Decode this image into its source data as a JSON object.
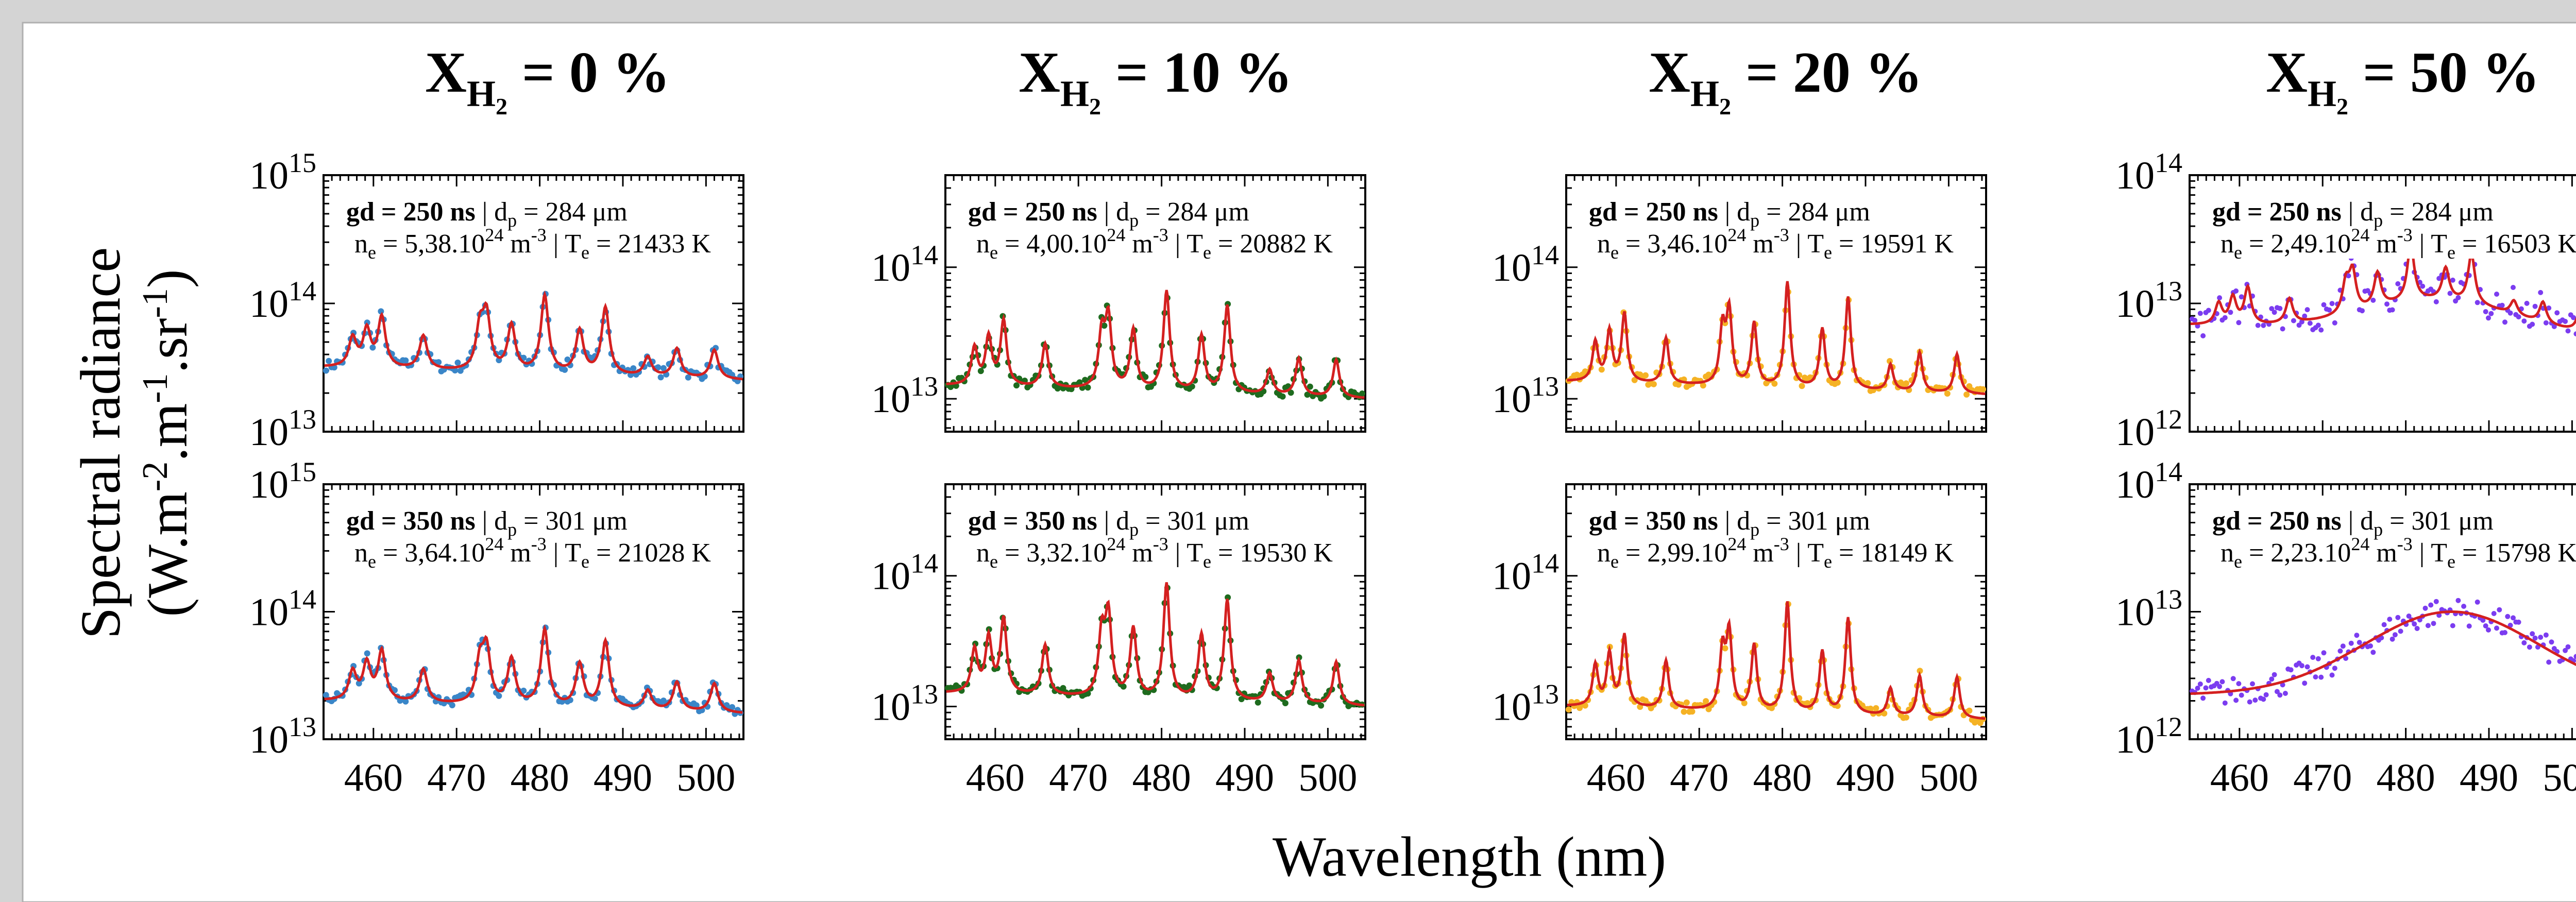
{
  "figure": {
    "ylabel_line1": "Spectral radiance",
    "ylabel_line2_parts": [
      "(W.m",
      "-2",
      ".m",
      "-1",
      ".sr",
      "-1",
      ")"
    ],
    "xlabel": "Wavelength (nm)"
  },
  "colors": {
    "background": "#d4d4d4",
    "panel": "#ffffff",
    "fit": "#d42020",
    "XH2_0": "#3a86c8",
    "XH2_10": "#1e6b1e",
    "XH2_20": "#f5b224",
    "XH2_50": "#7b3cf0"
  },
  "chart_data": [
    {
      "type": "line",
      "column_title": {
        "var": "X",
        "sub": "H",
        "subsub": "2",
        "text": " = 0 %"
      },
      "panels": [
        {
          "gd": "gd = 250 ns",
          "dp_pre": "d",
          "dp_sub": "p",
          "dp_val": " = 284 μm",
          "ne_pre": "n",
          "ne_sub": "e",
          "ne_val": " = 5,38.10",
          "ne_exp": "24",
          "ne_unit": " m",
          "ne_unit_exp": "-3",
          "te_pre": "T",
          "te_sub": "e",
          "te_val": " = 21433 K",
          "yticks": [
            13,
            14,
            15
          ],
          "ylim_log10": [
            13,
            15
          ],
          "series": [
            {
              "name": "measured",
              "color": "#3a86c8"
            },
            {
              "name": "fit",
              "color": "#d42020"
            }
          ]
        },
        {
          "gd": "gd = 350 ns",
          "dp_pre": "d",
          "dp_sub": "p",
          "dp_val": " = 301 μm",
          "ne_pre": "n",
          "ne_sub": "e",
          "ne_val": " = 3,64.10",
          "ne_exp": "24",
          "ne_unit": " m",
          "ne_unit_exp": "-3",
          "te_pre": "T",
          "te_sub": "e",
          "te_val": " = 21028 K",
          "yticks": [
            13,
            14,
            15
          ],
          "ylim_log10": [
            13,
            15
          ],
          "series": [
            {
              "name": "measured",
              "color": "#3a86c8"
            },
            {
              "name": "fit",
              "color": "#d42020"
            }
          ]
        }
      ]
    },
    {
      "type": "line",
      "column_title": {
        "var": "X",
        "sub": "H",
        "subsub": "2",
        "text": " = 10 %"
      },
      "panels": [
        {
          "gd": "gd = 250 ns",
          "dp_pre": "d",
          "dp_sub": "p",
          "dp_val": " = 284 μm",
          "ne_pre": "n",
          "ne_sub": "e",
          "ne_val": " = 4,00.10",
          "ne_exp": "24",
          "ne_unit": " m",
          "ne_unit_exp": "-3",
          "te_pre": "T",
          "te_sub": "e",
          "te_val": " = 20882 K",
          "yticks": [
            13,
            14
          ],
          "ylim_log10": [
            12.75,
            14.7
          ],
          "series": [
            {
              "name": "measured",
              "color": "#1e6b1e"
            },
            {
              "name": "fit",
              "color": "#d42020"
            }
          ]
        },
        {
          "gd": "gd = 350 ns",
          "dp_pre": "d",
          "dp_sub": "p",
          "dp_val": " = 301 μm",
          "ne_pre": "n",
          "ne_sub": "e",
          "ne_val": " = 3,32.10",
          "ne_exp": "24",
          "ne_unit": " m",
          "ne_unit_exp": "-3",
          "te_pre": "T",
          "te_sub": "e",
          "te_val": " = 19530 K",
          "yticks": [
            13,
            14
          ],
          "ylim_log10": [
            12.75,
            14.7
          ],
          "series": [
            {
              "name": "measured",
              "color": "#1e6b1e"
            },
            {
              "name": "fit",
              "color": "#d42020"
            }
          ]
        }
      ]
    },
    {
      "type": "line",
      "column_title": {
        "var": "X",
        "sub": "H",
        "subsub": "2",
        "text": " = 20 %"
      },
      "panels": [
        {
          "gd": "gd = 250 ns",
          "dp_pre": "d",
          "dp_sub": "p",
          "dp_val": " = 284 μm",
          "ne_pre": "n",
          "ne_sub": "e",
          "ne_val": " = 3,46.10",
          "ne_exp": "24",
          "ne_unit": " m",
          "ne_unit_exp": "-3",
          "te_pre": "T",
          "te_sub": "e",
          "te_val": " = 19591 K",
          "yticks": [
            13,
            14
          ],
          "ylim_log10": [
            12.75,
            14.7
          ],
          "series": [
            {
              "name": "measured",
              "color": "#f5b224"
            },
            {
              "name": "fit",
              "color": "#d42020"
            }
          ]
        },
        {
          "gd": "gd = 350 ns",
          "dp_pre": "d",
          "dp_sub": "p",
          "dp_val": " = 301 μm",
          "ne_pre": "n",
          "ne_sub": "e",
          "ne_val": " = 2,99.10",
          "ne_exp": "24",
          "ne_unit": " m",
          "ne_unit_exp": "-3",
          "te_pre": "T",
          "te_sub": "e",
          "te_val": " = 18149 K",
          "yticks": [
            13,
            14
          ],
          "ylim_log10": [
            12.75,
            14.7
          ],
          "series": [
            {
              "name": "measured",
              "color": "#f5b224"
            },
            {
              "name": "fit",
              "color": "#d42020"
            }
          ]
        }
      ]
    },
    {
      "type": "line",
      "column_title": {
        "var": "X",
        "sub": "H",
        "subsub": "2",
        "text": " = 50 %"
      },
      "panels": [
        {
          "gd": "gd = 250 ns",
          "dp_pre": "d",
          "dp_sub": "p",
          "dp_val": " = 284 μm",
          "ne_pre": "n",
          "ne_sub": "e",
          "ne_val": " = 2,49.10",
          "ne_exp": "24",
          "ne_unit": " m",
          "ne_unit_exp": "-3",
          "te_pre": "T",
          "te_sub": "e",
          "te_val": " = 16503 K",
          "yticks": [
            12,
            13,
            14
          ],
          "ylim_log10": [
            12,
            14
          ],
          "series": [
            {
              "name": "measured",
              "color": "#7b3cf0"
            },
            {
              "name": "fit",
              "color": "#d42020"
            }
          ]
        },
        {
          "gd": "gd = 250 ns",
          "dp_pre": "d",
          "dp_sub": "p",
          "dp_val": " = 301 μm",
          "ne_pre": "n",
          "ne_sub": "e",
          "ne_val": " = 2,23.10",
          "ne_exp": "24",
          "ne_unit": " m",
          "ne_unit_exp": "-3",
          "te_pre": "T",
          "te_sub": "e",
          "te_val": " = 15798 K",
          "yticks": [
            12,
            13,
            14
          ],
          "ylim_log10": [
            12,
            14
          ],
          "series": [
            {
              "name": "measured",
              "color": "#7b3cf0"
            },
            {
              "name": "fit",
              "color": "#d42020"
            }
          ]
        }
      ]
    }
  ],
  "x_axis": {
    "ticks": [
      460,
      470,
      480,
      490,
      500
    ],
    "xlim": [
      454,
      504.5
    ]
  }
}
